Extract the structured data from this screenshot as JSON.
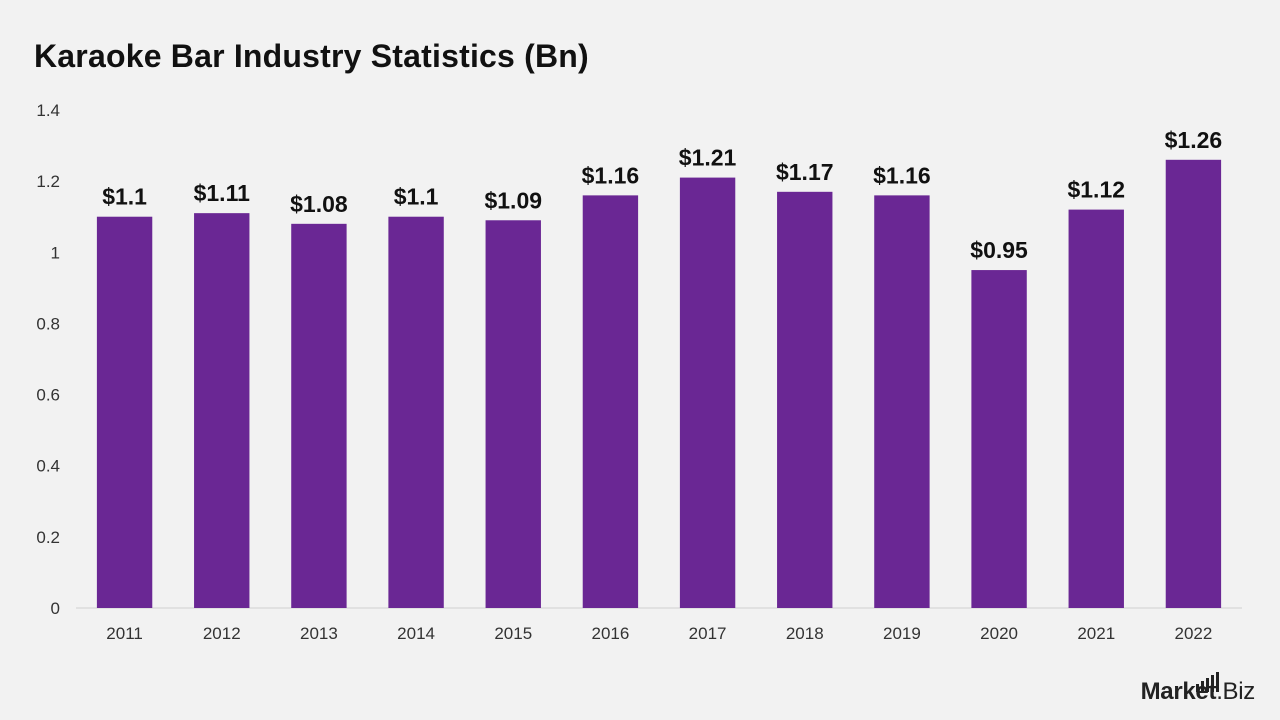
{
  "title": "Karaoke Bar Industry Statistics (Bn)",
  "brand": {
    "name_bold": "Market",
    "name_light": ".Biz"
  },
  "colors": {
    "bar": "#6a2794",
    "background": "#f2f2f2",
    "axis": "#d0d0d0"
  },
  "chart_data": {
    "type": "bar",
    "title": "Karaoke Bar Industry Statistics (Bn)",
    "xlabel": "",
    "ylabel": "",
    "categories": [
      "2011",
      "2012",
      "2013",
      "2014",
      "2015",
      "2016",
      "2017",
      "2018",
      "2019",
      "2020",
      "2021",
      "2022"
    ],
    "values": [
      1.1,
      1.11,
      1.08,
      1.1,
      1.09,
      1.16,
      1.21,
      1.17,
      1.16,
      0.95,
      1.12,
      1.26
    ],
    "data_labels": [
      "$1.1",
      "$1.11",
      "$1.08",
      "$1.1",
      "$1.09",
      "$1.16",
      "$1.21",
      "$1.17",
      "$1.16",
      "$0.95",
      "$1.12",
      "$1.26"
    ],
    "ylim": [
      0,
      1.4
    ],
    "yticks": [
      0,
      0.2,
      0.4,
      0.6,
      0.8,
      1,
      1.2,
      1.4
    ],
    "ytick_labels": [
      "0",
      "0.2",
      "0.4",
      "0.6",
      "0.8",
      "1",
      "1.2",
      "1.4"
    ],
    "grid": false,
    "legend": "none"
  }
}
